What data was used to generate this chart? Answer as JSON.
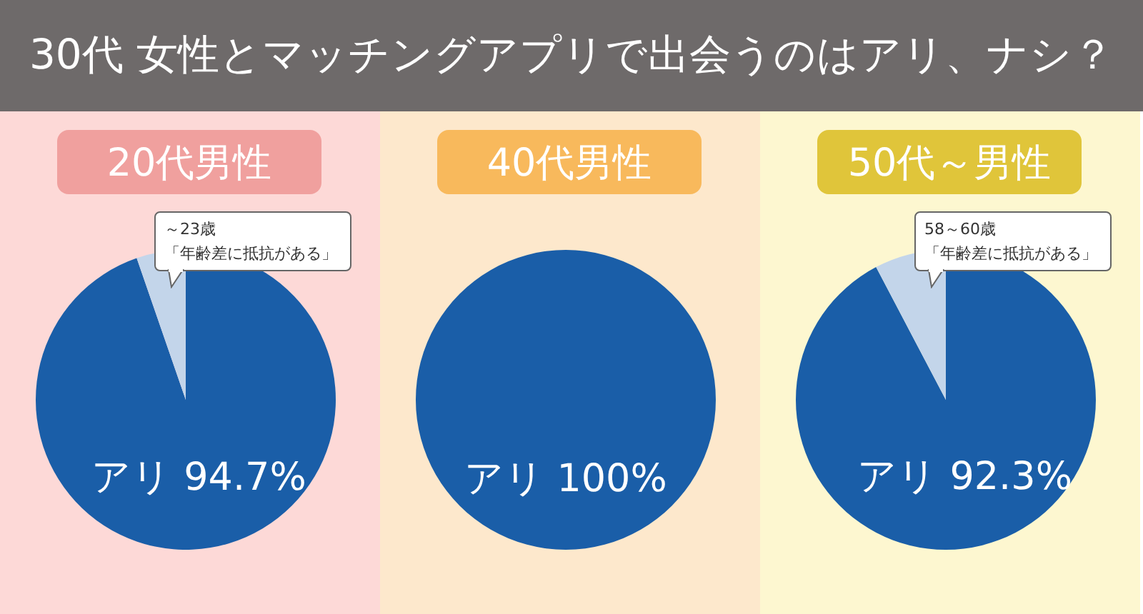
{
  "chart_data": [
    {
      "type": "other",
      "title": "30代 女性とマッチングアプリで出会うのはアリ、ナシ？"
    },
    {
      "type": "pie",
      "title": "20代男性",
      "categories": [
        "アリ",
        null
      ],
      "values": [
        94.7,
        5.3
      ],
      "colors": [
        "#1a5ea8",
        "#c3d5ea"
      ],
      "value_labels": [
        "94.7%",
        null
      ],
      "annotations": [
        "～23歳",
        "「年齢差に抵抗がある」"
      ]
    },
    {
      "type": "pie",
      "title": "40代男性",
      "categories": [
        "アリ"
      ],
      "values": [
        100
      ],
      "colors": [
        "#1a5ea8"
      ],
      "value_labels": [
        "100%"
      ]
    },
    {
      "type": "pie",
      "title": "50代～男性",
      "categories": [
        "アリ",
        null
      ],
      "values": [
        92.3,
        7.7
      ],
      "colors": [
        "#1a5ea8",
        "#c3d5ea"
      ],
      "value_labels": [
        "92.3%",
        null
      ],
      "annotations": [
        "58～60歳",
        "「年齢差に抵抗がある」"
      ]
    }
  ]
}
